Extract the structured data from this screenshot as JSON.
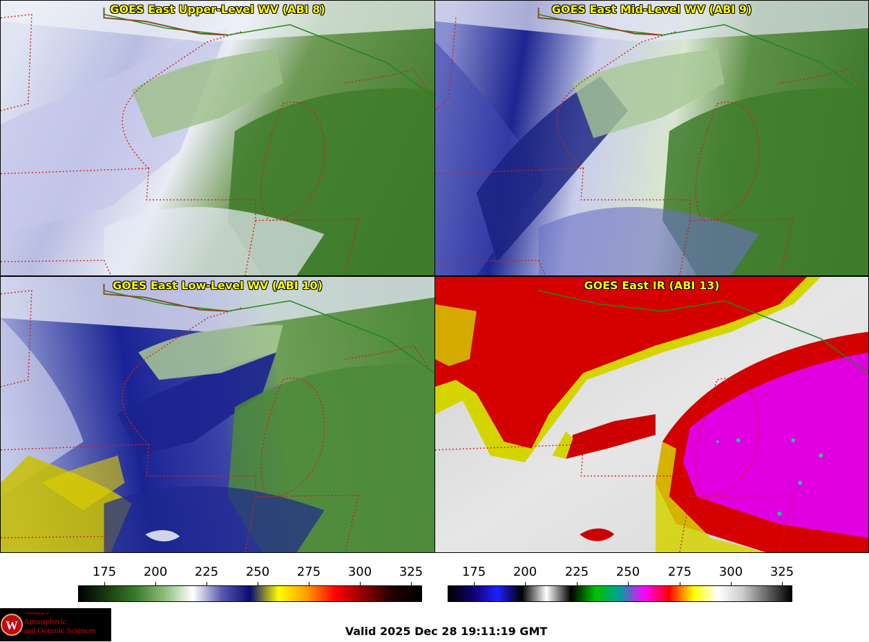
{
  "panels": [
    {
      "title": "GOES East Upper-Level WV (ABI 8)"
    },
    {
      "title": "GOES East Mid-Level WV (ABI 9)"
    },
    {
      "title": "GOES East Low-Level WV (ABI 10)"
    },
    {
      "title": "GOES East IR (ABI 13)"
    }
  ],
  "colorbars": {
    "ticks": [
      "175",
      "200",
      "225",
      "250",
      "275",
      "300",
      "325"
    ],
    "wv_colors": [
      "#000000",
      "#1a3d10",
      "#3b7b2a",
      "#8fbc7c",
      "#ffffff",
      "#5a5ab0",
      "#0a0a70",
      "#ffff00",
      "#ff9900",
      "#ff0000",
      "#8a0000",
      "#200000",
      "#000000"
    ],
    "ir_colors": [
      "#000000",
      "#10006a",
      "#2020ff",
      "#000000",
      "#ffffff",
      "#000000",
      "#00c000",
      "#00a0a0",
      "#ff00ff",
      "#ff0000",
      "#ffff00",
      "#ffffff",
      "#cccccc",
      "#666666",
      "#000000"
    ]
  },
  "logo": {
    "dept_line": "Department of",
    "line1": "Atmospheric",
    "line2": "and Oceanic Sciences"
  },
  "valid_text": "Valid 2025 Dec 28 19:11:19 GMT"
}
